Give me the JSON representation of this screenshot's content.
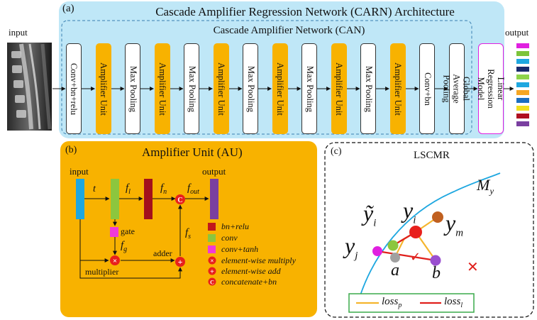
{
  "panel_a": {
    "tag": "(a)",
    "title": "Cascade Amplifier Regression Network (CARN) Architecture",
    "can_title": "Cascade Amplifier Network (CAN)",
    "input_label": "input",
    "output_label": "output",
    "blocks": [
      {
        "label": "Conv+bn+relu",
        "kind": "white"
      },
      {
        "label": "Amplifier Unit",
        "kind": "orange"
      },
      {
        "label": "Max Pooling",
        "kind": "white"
      },
      {
        "label": "Amplifier Unit",
        "kind": "orange"
      },
      {
        "label": "Max Pooling",
        "kind": "white"
      },
      {
        "label": "Amplifier Unit",
        "kind": "orange"
      },
      {
        "label": "Max Pooling",
        "kind": "white"
      },
      {
        "label": "Amplifier Unit",
        "kind": "orange"
      },
      {
        "label": "Max Pooling",
        "kind": "white"
      },
      {
        "label": "Amplifier Unit",
        "kind": "orange"
      },
      {
        "label": "Max Pooling",
        "kind": "white"
      },
      {
        "label": "Amplifier Unit",
        "kind": "orange"
      },
      {
        "label": "Conv+bn",
        "kind": "white"
      },
      {
        "label": "Global Average Pooling",
        "kind": "white"
      }
    ],
    "regression_label": "Linear Regression Model",
    "output_colors": [
      "#e020e0",
      "#7cc43a",
      "#1ea7e0",
      "#1a2a6c",
      "#8fd44a",
      "#1ea7e0",
      "#f5a623",
      "#1a6ec0",
      "#f0e020",
      "#b01020",
      "#7a3fa0"
    ]
  },
  "panel_b": {
    "tag": "(b)",
    "title": "Amplifier Unit (AU)",
    "input_label": "input",
    "output_label": "output",
    "label_t": "t",
    "label_fl": "f",
    "label_fl_sub": "l",
    "label_fn": "f",
    "label_fn_sub": "n",
    "label_fout": "f",
    "label_fout_sub": "out",
    "label_fg": "f",
    "label_fg_sub": "g",
    "label_fs": "f",
    "label_fs_sub": "s",
    "gate_label": "gate",
    "adder_label": "adder",
    "multiplier_label": "multiplier",
    "legend": [
      {
        "marker": "square",
        "color": "#c0171c",
        "label": "bn+relu"
      },
      {
        "marker": "square",
        "color": "#8cc63e",
        "label": "conv"
      },
      {
        "marker": "square",
        "color": "#f03ad8",
        "label": "conv+tanh"
      },
      {
        "marker": "circle",
        "symbol": "×",
        "label": "element-wise multiply"
      },
      {
        "marker": "circle",
        "symbol": "+",
        "label": "element-wise add"
      },
      {
        "marker": "circle",
        "symbol": "C",
        "label": "concatenate+bn"
      }
    ],
    "colors": {
      "panel": "#f8b200",
      "input_bar": "#1ea7e0",
      "conv_bar": "#8cc63e",
      "bn_bar": "#a3101c",
      "out_bar": "#7a3fa0",
      "gate": "#f03ad8",
      "op": "#e8201c"
    }
  },
  "panel_c": {
    "tag": "(c)",
    "title": "LSCMR",
    "label_my": "M",
    "label_my_sub": "y",
    "label_yi": "y",
    "label_yi_sub": "i",
    "label_yti": "ỹ",
    "label_yti_sub": "i",
    "label_yj": "y",
    "label_yj_sub": "j",
    "label_ym": "y",
    "label_ym_sub": "m",
    "label_a": "a",
    "label_b": "b",
    "check_mark": "✓",
    "cross_mark": "✕",
    "legend": [
      {
        "color": "#f5b52e",
        "label": "loss",
        "sub": "p"
      },
      {
        "color": "#e0201c",
        "label": "loss",
        "sub": "l"
      }
    ]
  }
}
